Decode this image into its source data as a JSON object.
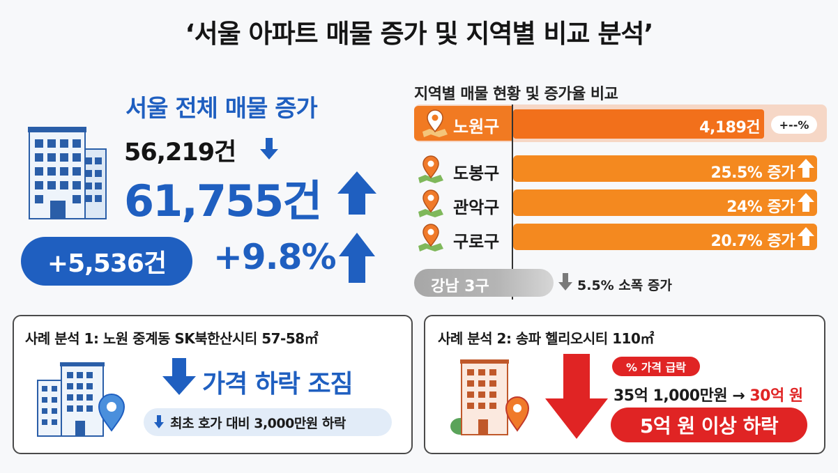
{
  "title": "‘서울 아파트 매물 증가 및 지역별 비교 분석’",
  "seoul": {
    "heading": "서울 전체 매물 증가",
    "previous": "56,219건",
    "current": "61,755건",
    "diff": "+5,536건",
    "rate": "+9.8%"
  },
  "chart_data": {
    "type": "bar",
    "title": "지역별 매물 현황 및 증가율 비교",
    "categories": [
      "노원구",
      "도봉구",
      "관악구",
      "구로구",
      "강남 3구"
    ],
    "values_pct": [
      null,
      25.5,
      24,
      20.7,
      5.5
    ],
    "bar_labels": [
      "4,189건",
      "25.5% 증가",
      "24% 증가",
      "20.7% 증가",
      ""
    ],
    "top_chip": "+--%",
    "gangnam_note": "5.5% 소폭 증가",
    "colors": {
      "top": "#f2701b",
      "bars": "#f4891f",
      "gangnam": "#b0b0b0"
    }
  },
  "case1": {
    "title": "사례 분석 1: 노원 중계동 SK북한산시티 57-58㎡",
    "signal": "가격 하락 조짐",
    "note": "최초 호가 대비 3,000만원 하락"
  },
  "case2": {
    "title": "사례 분석 2: 송파 헬리오시티 110㎡",
    "badge": "% 가격 급락",
    "price_before": "35억 1,000만원 →",
    "price_after": "30억 원",
    "drop": "5억 원 이상 하락"
  },
  "colors": {
    "blue": "#1f5fc0",
    "orange": "#f4891f",
    "red": "#e02424"
  }
}
